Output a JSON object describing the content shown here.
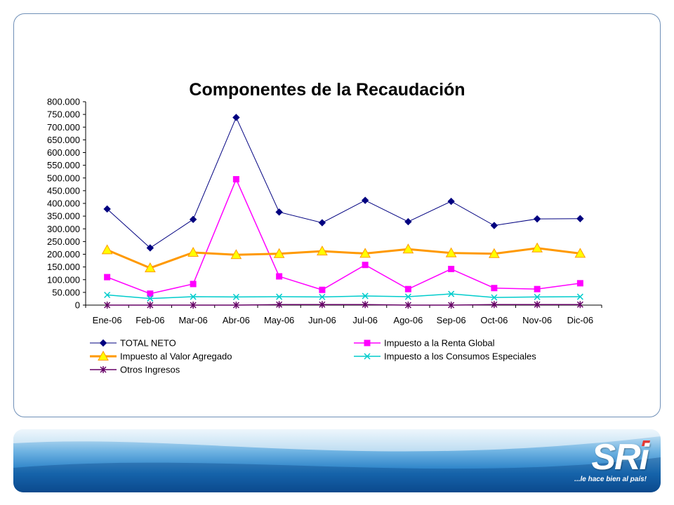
{
  "chart_data": {
    "type": "line",
    "title": "Componentes de la Recaudación",
    "categories": [
      "Ene-06",
      "Feb-06",
      "Mar-06",
      "Abr-06",
      "May-06",
      "Jun-06",
      "Jul-06",
      "Ago-06",
      "Sep-06",
      "Oct-06",
      "Nov-06",
      "Dic-06"
    ],
    "ylim": [
      0,
      800000
    ],
    "yticks": [
      "0",
      "50.000",
      "100.000",
      "150.000",
      "200.000",
      "250.000",
      "300.000",
      "350.000",
      "400.000",
      "450.000",
      "500.000",
      "550.000",
      "600.000",
      "650.000",
      "700.000",
      "750.000",
      "800.000"
    ],
    "grid": false,
    "legend_position": "bottom",
    "series": [
      {
        "name": "TOTAL NETO",
        "color": "#000080",
        "marker": "diamond",
        "values": [
          378000,
          225000,
          337000,
          738000,
          366000,
          324000,
          412000,
          328000,
          408000,
          313000,
          339000,
          340000
        ]
      },
      {
        "name": "Impuesto a la Renta Global",
        "color": "#ff00ff",
        "marker": "square",
        "values": [
          110000,
          45000,
          83000,
          495000,
          113000,
          60000,
          158000,
          63000,
          142000,
          67000,
          63000,
          86000
        ]
      },
      {
        "name": "Impuesto al Valor Agregado",
        "color": "#ff9900",
        "marker": "triangle",
        "values": [
          217000,
          146000,
          207000,
          198000,
          202000,
          212000,
          203000,
          220000,
          205000,
          202000,
          224000,
          203000
        ]
      },
      {
        "name": "Impuesto a los Consumos Especiales",
        "color": "#00cccc",
        "marker": "x",
        "values": [
          40000,
          26000,
          33000,
          32000,
          33000,
          32000,
          36000,
          33000,
          44000,
          30000,
          32000,
          33000
        ]
      },
      {
        "name": "Otros Ingresos",
        "color": "#660066",
        "marker": "star",
        "values": [
          0,
          0,
          0,
          0,
          2000,
          2000,
          2000,
          0,
          0,
          2000,
          2000,
          2000
        ]
      }
    ]
  },
  "logo": {
    "brand": "SRi",
    "slogan": "...le hace bien al país!"
  }
}
